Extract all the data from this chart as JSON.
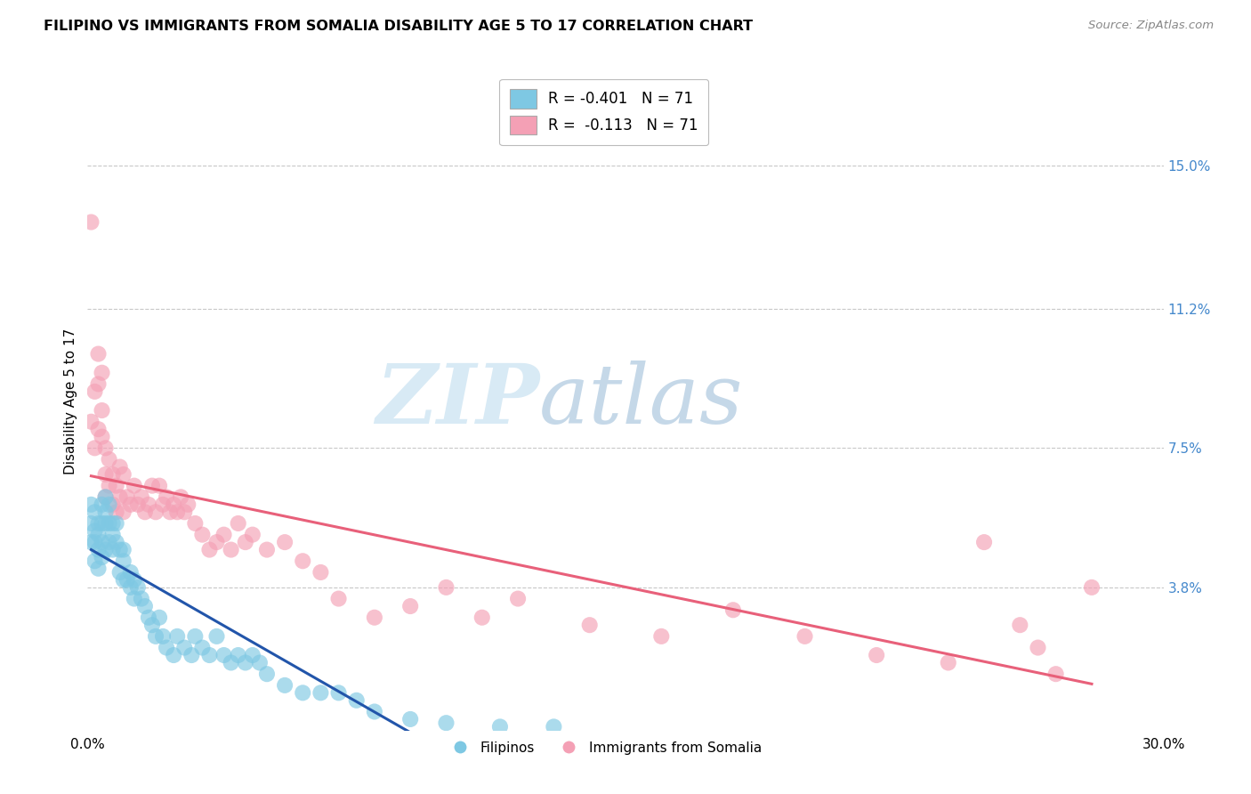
{
  "title": "FILIPINO VS IMMIGRANTS FROM SOMALIA DISABILITY AGE 5 TO 17 CORRELATION CHART",
  "source": "Source: ZipAtlas.com",
  "ylabel": "Disability Age 5 to 17",
  "xlim": [
    0.0,
    0.3
  ],
  "ylim": [
    0.0,
    0.175
  ],
  "ytick_labels_right": [
    "15.0%",
    "11.2%",
    "7.5%",
    "3.8%"
  ],
  "ytick_vals_right": [
    0.15,
    0.112,
    0.075,
    0.038
  ],
  "r_filipino": -0.401,
  "n_filipino": 71,
  "r_somalia": -0.113,
  "n_somalia": 71,
  "color_filipino": "#7ec8e3",
  "color_somalia": "#f4a0b5",
  "line_color_filipino": "#2255aa",
  "line_color_somalia": "#e8607a",
  "background_color": "#ffffff",
  "grid_color": "#c8c8c8",
  "watermark_zip": "ZIP",
  "watermark_atlas": "atlas",
  "watermark_color_zip": "#d8eaf5",
  "watermark_color_atlas": "#c5d8e8",
  "legend_label_filipino": "Filipinos",
  "legend_label_somalia": "Immigrants from Somalia",
  "filipino_x": [
    0.001,
    0.001,
    0.001,
    0.002,
    0.002,
    0.002,
    0.002,
    0.003,
    0.003,
    0.003,
    0.003,
    0.004,
    0.004,
    0.004,
    0.004,
    0.005,
    0.005,
    0.005,
    0.005,
    0.006,
    0.006,
    0.006,
    0.007,
    0.007,
    0.007,
    0.008,
    0.008,
    0.009,
    0.009,
    0.01,
    0.01,
    0.01,
    0.011,
    0.012,
    0.012,
    0.013,
    0.013,
    0.014,
    0.015,
    0.016,
    0.017,
    0.018,
    0.019,
    0.02,
    0.021,
    0.022,
    0.024,
    0.025,
    0.027,
    0.029,
    0.03,
    0.032,
    0.034,
    0.036,
    0.038,
    0.04,
    0.042,
    0.044,
    0.046,
    0.048,
    0.05,
    0.055,
    0.06,
    0.065,
    0.07,
    0.075,
    0.08,
    0.09,
    0.1,
    0.115,
    0.13
  ],
  "filipino_y": [
    0.06,
    0.055,
    0.05,
    0.058,
    0.053,
    0.05,
    0.045,
    0.055,
    0.052,
    0.048,
    0.043,
    0.06,
    0.055,
    0.05,
    0.046,
    0.062,
    0.058,
    0.055,
    0.048,
    0.06,
    0.055,
    0.05,
    0.055,
    0.052,
    0.048,
    0.055,
    0.05,
    0.048,
    0.042,
    0.048,
    0.045,
    0.04,
    0.04,
    0.038,
    0.042,
    0.04,
    0.035,
    0.038,
    0.035,
    0.033,
    0.03,
    0.028,
    0.025,
    0.03,
    0.025,
    0.022,
    0.02,
    0.025,
    0.022,
    0.02,
    0.025,
    0.022,
    0.02,
    0.025,
    0.02,
    0.018,
    0.02,
    0.018,
    0.02,
    0.018,
    0.015,
    0.012,
    0.01,
    0.01,
    0.01,
    0.008,
    0.005,
    0.003,
    0.002,
    0.001,
    0.001
  ],
  "somalia_x": [
    0.001,
    0.001,
    0.002,
    0.002,
    0.003,
    0.003,
    0.003,
    0.004,
    0.004,
    0.004,
    0.005,
    0.005,
    0.005,
    0.006,
    0.006,
    0.007,
    0.007,
    0.008,
    0.008,
    0.009,
    0.009,
    0.01,
    0.01,
    0.011,
    0.012,
    0.013,
    0.014,
    0.015,
    0.016,
    0.017,
    0.018,
    0.019,
    0.02,
    0.021,
    0.022,
    0.023,
    0.024,
    0.025,
    0.026,
    0.027,
    0.028,
    0.03,
    0.032,
    0.034,
    0.036,
    0.038,
    0.04,
    0.042,
    0.044,
    0.046,
    0.05,
    0.055,
    0.06,
    0.065,
    0.07,
    0.08,
    0.09,
    0.1,
    0.11,
    0.12,
    0.14,
    0.16,
    0.18,
    0.2,
    0.22,
    0.24,
    0.25,
    0.26,
    0.265,
    0.27,
    0.28
  ],
  "somalia_y": [
    0.135,
    0.082,
    0.09,
    0.075,
    0.1,
    0.092,
    0.08,
    0.095,
    0.085,
    0.078,
    0.068,
    0.075,
    0.062,
    0.072,
    0.065,
    0.068,
    0.06,
    0.065,
    0.058,
    0.07,
    0.062,
    0.068,
    0.058,
    0.062,
    0.06,
    0.065,
    0.06,
    0.062,
    0.058,
    0.06,
    0.065,
    0.058,
    0.065,
    0.06,
    0.062,
    0.058,
    0.06,
    0.058,
    0.062,
    0.058,
    0.06,
    0.055,
    0.052,
    0.048,
    0.05,
    0.052,
    0.048,
    0.055,
    0.05,
    0.052,
    0.048,
    0.05,
    0.045,
    0.042,
    0.035,
    0.03,
    0.033,
    0.038,
    0.03,
    0.035,
    0.028,
    0.025,
    0.032,
    0.025,
    0.02,
    0.018,
    0.05,
    0.028,
    0.022,
    0.015,
    0.038
  ]
}
